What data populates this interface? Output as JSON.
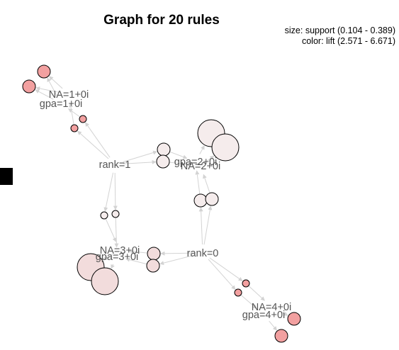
{
  "title": "Graph for 20 rules",
  "legend": {
    "size": "size: support (0.104 - 0.389)",
    "color": "color: lift (2.571 - 6.671)"
  },
  "colors": {
    "low_lift": "#f5ecec",
    "mid_lift": "#f2dcdc",
    "high_lift": "#f2a0a0",
    "edge": "#d3d3d3",
    "label": "#555555"
  },
  "items": [
    {
      "id": "na1",
      "label": "NA=1+0i"
    },
    {
      "id": "gpa1",
      "label": "gpa=1+0i"
    },
    {
      "id": "rank1",
      "label": "rank=1"
    },
    {
      "id": "gpa2",
      "label": "gpa=2+0i"
    },
    {
      "id": "na2",
      "label": "NA=2+0i"
    },
    {
      "id": "na3",
      "label": "NA=3+0i"
    },
    {
      "id": "gpa3",
      "label": "gpa=3+0i"
    },
    {
      "id": "rank0",
      "label": "rank=0"
    },
    {
      "id": "na4",
      "label": "NA=4+0i"
    },
    {
      "id": "gpa4",
      "label": "gpa=4+0i"
    }
  ],
  "rules": [
    {
      "id": "r1",
      "support_level": "small",
      "lift": "high"
    },
    {
      "id": "r2",
      "support_level": "small",
      "lift": "high"
    },
    {
      "id": "r3",
      "support_level": "tiny",
      "lift": "high"
    },
    {
      "id": "r4",
      "support_level": "tiny",
      "lift": "high"
    },
    {
      "id": "r5",
      "support_level": "small",
      "lift": "low"
    },
    {
      "id": "r6",
      "support_level": "small",
      "lift": "low"
    },
    {
      "id": "r7",
      "support_level": "large",
      "lift": "low"
    },
    {
      "id": "r8",
      "support_level": "large",
      "lift": "low"
    },
    {
      "id": "r9",
      "support_level": "small",
      "lift": "low"
    },
    {
      "id": "r10",
      "support_level": "small",
      "lift": "low"
    },
    {
      "id": "r11",
      "support_level": "tiny",
      "lift": "low"
    },
    {
      "id": "r12",
      "support_level": "tiny",
      "lift": "low"
    },
    {
      "id": "r13",
      "support_level": "small",
      "lift": "mid"
    },
    {
      "id": "r14",
      "support_level": "small",
      "lift": "mid"
    },
    {
      "id": "r15",
      "support_level": "large",
      "lift": "mid"
    },
    {
      "id": "r16",
      "support_level": "large",
      "lift": "mid"
    },
    {
      "id": "r17",
      "support_level": "tiny",
      "lift": "high"
    },
    {
      "id": "r18",
      "support_level": "tiny",
      "lift": "high"
    },
    {
      "id": "r19",
      "support_level": "small",
      "lift": "high"
    },
    {
      "id": "r20",
      "support_level": "small",
      "lift": "high"
    }
  ],
  "edges": [
    [
      "gpa1",
      "r1"
    ],
    [
      "na1",
      "r2"
    ],
    [
      "gpa1",
      "r2"
    ],
    [
      "na1",
      "r1"
    ],
    [
      "r3",
      "gpa1"
    ],
    [
      "r4",
      "na1"
    ],
    [
      "rank1",
      "r3"
    ],
    [
      "rank1",
      "r4"
    ],
    [
      "rank1",
      "r5"
    ],
    [
      "rank1",
      "r6"
    ],
    [
      "r5",
      "gpa2"
    ],
    [
      "r6",
      "na2"
    ],
    [
      "gpa2",
      "r7"
    ],
    [
      "na2",
      "r8"
    ],
    [
      "r9",
      "gpa2"
    ],
    [
      "r10",
      "na2"
    ],
    [
      "rank0",
      "r9"
    ],
    [
      "rank0",
      "r10"
    ],
    [
      "rank1",
      "r11"
    ],
    [
      "rank1",
      "r12"
    ],
    [
      "r11",
      "na3"
    ],
    [
      "r12",
      "gpa3"
    ],
    [
      "rank0",
      "r13"
    ],
    [
      "rank0",
      "r14"
    ],
    [
      "r13",
      "na3"
    ],
    [
      "r14",
      "gpa3"
    ],
    [
      "na3",
      "r15"
    ],
    [
      "gpa3",
      "r16"
    ],
    [
      "rank0",
      "r17"
    ],
    [
      "rank0",
      "r18"
    ],
    [
      "r17",
      "na4"
    ],
    [
      "r18",
      "gpa4"
    ],
    [
      "na4",
      "r19"
    ],
    [
      "gpa4",
      "r20"
    ]
  ]
}
